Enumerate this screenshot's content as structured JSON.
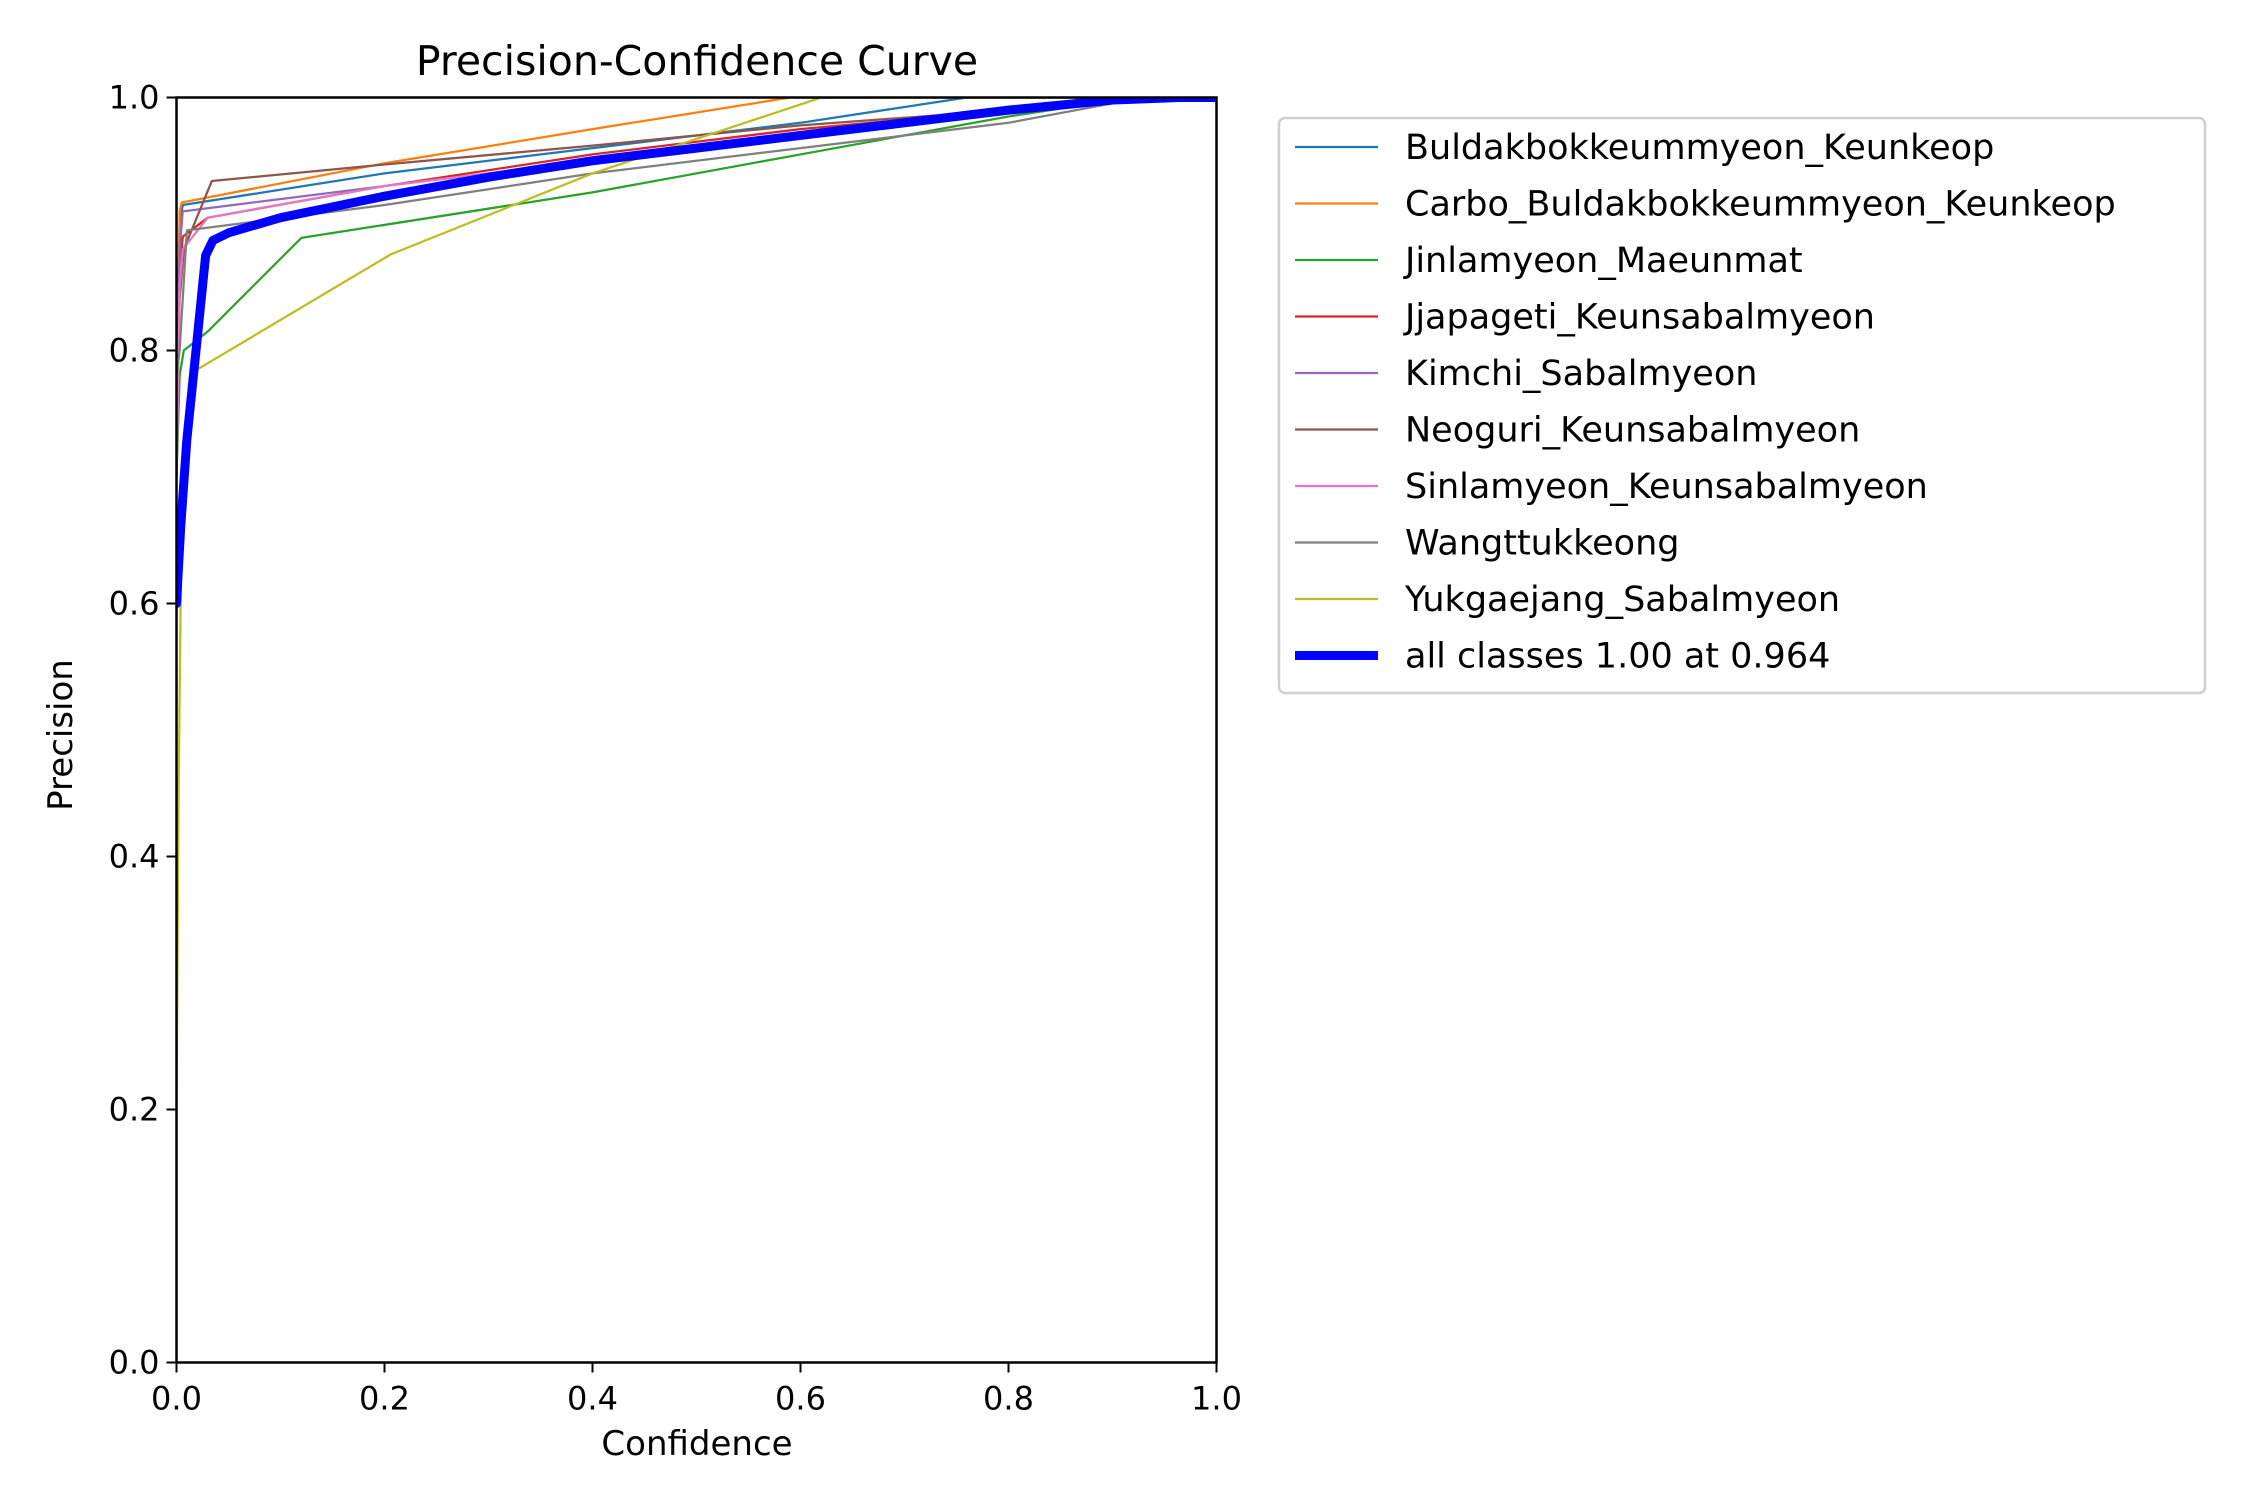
{
  "chart_data": {
    "type": "line",
    "title": "Precision-Confidence Curve",
    "xlabel": "Confidence",
    "ylabel": "Precision",
    "xlim": [
      0,
      1
    ],
    "ylim": [
      0,
      1
    ],
    "xticks": [
      0.0,
      0.2,
      0.4,
      0.6,
      0.8,
      1.0
    ],
    "yticks": [
      0.0,
      0.2,
      0.4,
      0.6,
      0.8,
      1.0
    ],
    "xtick_labels": [
      "0.0",
      "0.2",
      "0.4",
      "0.6",
      "0.8",
      "1.0"
    ],
    "ytick_labels": [
      "0.0",
      "0.2",
      "0.4",
      "0.6",
      "0.8",
      "1.0"
    ],
    "grid": false,
    "legend_position": "outside-right",
    "series": [
      {
        "name": "Buldakbokkeummyeon_Keunkeop",
        "color": "#1f77b4",
        "width": 1.5,
        "x": [
          0,
          0.003,
          0.006,
          0.2,
          0.4,
          0.6,
          0.76,
          1.0
        ],
        "y": [
          0.78,
          0.9,
          0.915,
          0.94,
          0.96,
          0.98,
          1.0,
          1.0
        ]
      },
      {
        "name": "Carbo_Buldakbokkeummyeon_Keunkeop",
        "color": "#ff7f0e",
        "width": 1.5,
        "x": [
          0,
          0.003,
          0.005,
          0.2,
          0.4,
          0.59,
          1.0
        ],
        "y": [
          0.7,
          0.91,
          0.917,
          0.948,
          0.975,
          1.0,
          1.0
        ]
      },
      {
        "name": "Jinlamyeon_Maeunmat",
        "color": "#2ca02c",
        "width": 1.5,
        "x": [
          0,
          0.003,
          0.007,
          0.03,
          0.12,
          0.4,
          0.6,
          0.8,
          0.92,
          1.0
        ],
        "y": [
          0.7,
          0.78,
          0.8,
          0.815,
          0.889,
          0.925,
          0.955,
          0.985,
          1.0,
          1.0
        ]
      },
      {
        "name": "Jjapageti_Keunsabalmyeon",
        "color": "#d62728",
        "width": 1.5,
        "x": [
          0,
          0.003,
          0.006,
          0.03,
          0.2,
          0.4,
          0.6,
          0.8,
          0.9,
          1.0
        ],
        "y": [
          0.75,
          0.86,
          0.89,
          0.905,
          0.93,
          0.955,
          0.975,
          0.99,
          1.0,
          1.0
        ]
      },
      {
        "name": "Kimchi_Sabalmyeon",
        "color": "#9467bd",
        "width": 1.5,
        "x": [
          0,
          0.003,
          0.006,
          0.2,
          0.4,
          0.6,
          0.8,
          0.9,
          1.0
        ],
        "y": [
          0.72,
          0.88,
          0.91,
          0.93,
          0.95,
          0.97,
          0.99,
          1.0,
          1.0
        ]
      },
      {
        "name": "Neoguri_Keunsabalmyeon",
        "color": "#8c564b",
        "width": 1.5,
        "x": [
          0,
          0.003,
          0.007,
          0.034,
          0.2,
          0.4,
          0.6,
          0.8,
          0.9,
          1.0
        ],
        "y": [
          0.75,
          0.84,
          0.88,
          0.934,
          0.947,
          0.962,
          0.978,
          0.99,
          1.0,
          1.0
        ]
      },
      {
        "name": "Sinlamyeon_Keunsabalmyeon",
        "color": "#e377c2",
        "width": 1.5,
        "x": [
          0,
          0.003,
          0.006,
          0.03,
          0.2,
          0.4,
          0.6,
          0.8,
          0.9,
          1.0
        ],
        "y": [
          0.7,
          0.85,
          0.88,
          0.905,
          0.93,
          0.95,
          0.97,
          0.99,
          1.0,
          1.0
        ]
      },
      {
        "name": "Wangttukkeong",
        "color": "#7f7f7f",
        "width": 1.5,
        "x": [
          0,
          0.003,
          0.01,
          0.2,
          0.4,
          0.6,
          0.8,
          0.93,
          1.0
        ],
        "y": [
          0.78,
          0.8,
          0.895,
          0.915,
          0.94,
          0.96,
          0.98,
          1.0,
          1.0
        ]
      },
      {
        "name": "Yukgaejang_Sabalmyeon",
        "color": "#bcbd22",
        "width": 1.5,
        "x": [
          0,
          0.002,
          0.004,
          0.006,
          0.02,
          0.206,
          0.4,
          0.62,
          1.0
        ],
        "y": [
          0.2,
          0.45,
          0.6,
          0.72,
          0.785,
          0.876,
          0.94,
          1.0,
          1.0
        ]
      },
      {
        "name": "all classes 1.00 at 0.964",
        "color": "#0000ff",
        "width": 6,
        "x": [
          0,
          0.004,
          0.01,
          0.02,
          0.028,
          0.035,
          0.05,
          0.1,
          0.2,
          0.3,
          0.4,
          0.5,
          0.6,
          0.7,
          0.8,
          0.9,
          0.964,
          1.0
        ],
        "y": [
          0.6,
          0.66,
          0.73,
          0.81,
          0.875,
          0.887,
          0.893,
          0.905,
          0.922,
          0.937,
          0.95,
          0.96,
          0.97,
          0.98,
          0.99,
          0.998,
          1.0,
          1.0
        ]
      }
    ]
  }
}
